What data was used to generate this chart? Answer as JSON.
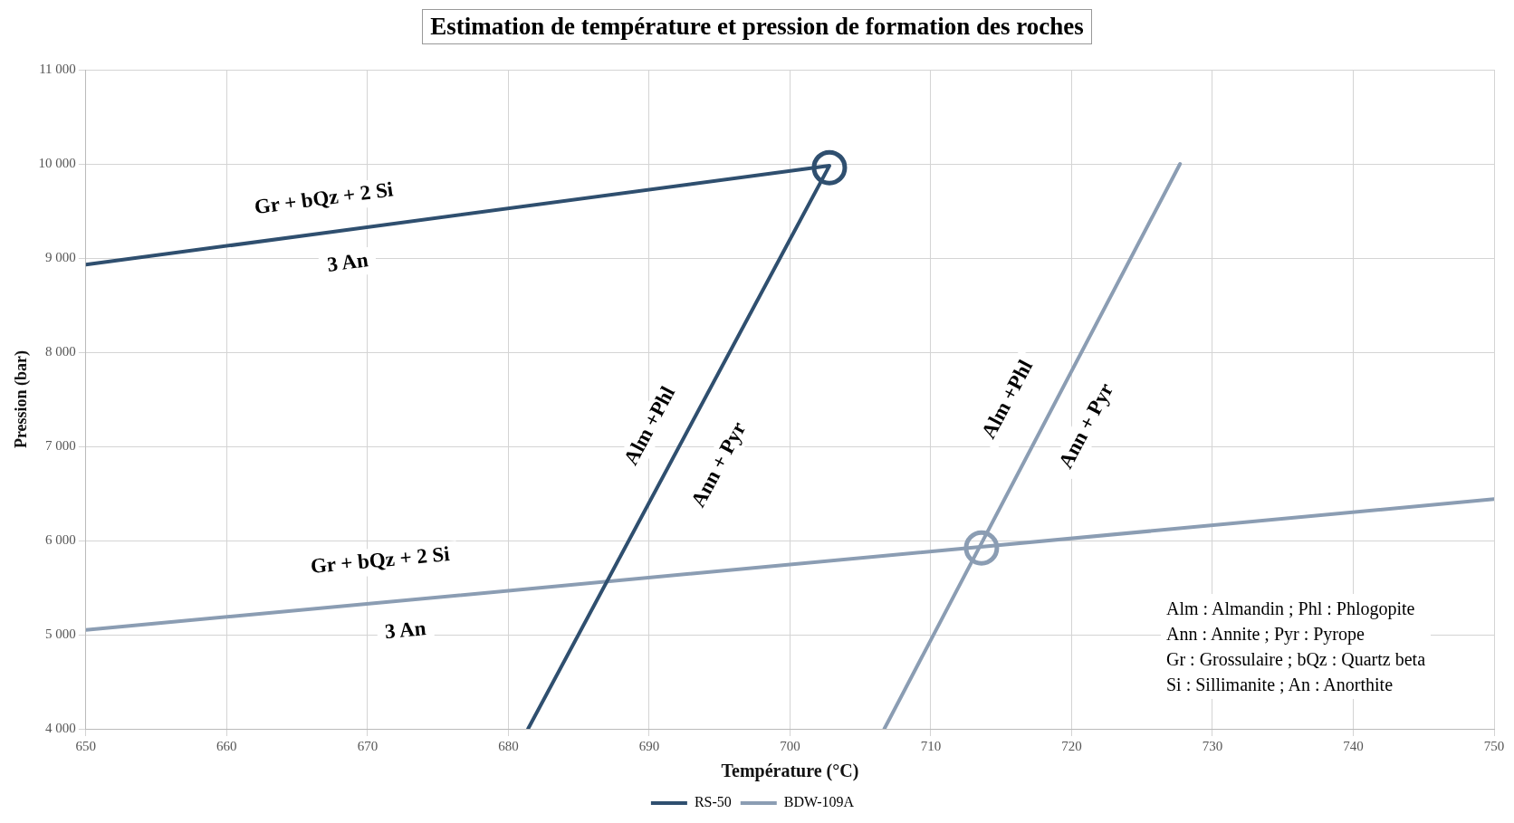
{
  "chart_data": {
    "type": "line",
    "title": "Estimation de température et pression de formation des roches",
    "xlabel": "Température (°C)",
    "ylabel": "Pression (bar)",
    "xlim": [
      650,
      750
    ],
    "xticks": [
      650,
      660,
      670,
      680,
      690,
      700,
      710,
      720,
      730,
      740,
      750
    ],
    "ylim": [
      4000,
      11000
    ],
    "yticks": [
      {
        "value": 4000,
        "label": "4 000"
      },
      {
        "value": 5000,
        "label": "5 000"
      },
      {
        "value": 6000,
        "label": "6 000"
      },
      {
        "value": 7000,
        "label": "7 000"
      },
      {
        "value": 8000,
        "label": "8 000"
      },
      {
        "value": 9000,
        "label": "9 000"
      },
      {
        "value": 10000,
        "label": "10 000"
      },
      {
        "value": 11000,
        "label": "11 000"
      }
    ],
    "grid": true,
    "legend": "bottom",
    "marker": "none",
    "series": [
      {
        "name": "RS-50",
        "color": "#2f4f6f",
        "x": [
          650,
          702.8,
          681.4
        ],
        "values": [
          8930,
          9980,
          4000
        ]
      },
      {
        "name": "BDW-109A",
        "color": "#8b9db3",
        "x": [
          650,
          750
        ],
        "values": [
          5050,
          6440
        ]
      },
      {
        "color": "#8b9db3",
        "x": [
          706.7,
          727.7
        ],
        "values": [
          4000,
          10000
        ]
      },
      {
        "type": "scatter",
        "marker": "circle",
        "color": "#2f4f6f",
        "x": [
          702.8
        ],
        "values": [
          9960
        ]
      },
      {
        "type": "scatter",
        "marker": "circle",
        "color": "#8b9db3",
        "x": [
          713.6
        ],
        "values": [
          5920
        ]
      }
    ],
    "annotations": [
      "Gr + bQz + 2 Si",
      "3 An",
      "Gr + bQz + 2 Si",
      "3 An",
      "Alm +Phl",
      "Ann + Pyr",
      "Alm +Phl",
      "Ann + Pyr",
      "Alm : Almandin ; Phl : Phlogopite",
      "Ann : Annite ; Pyr : Pyrope",
      "Gr : Grossulaire ; bQz : Quartz beta",
      "Si : Sillimanite ; An : Anorthite"
    ]
  }
}
